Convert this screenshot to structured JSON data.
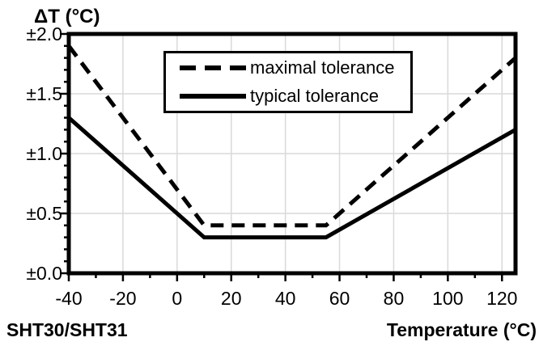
{
  "chart_data": {
    "type": "line",
    "title": "ΔT (°C)",
    "xlabel": "Temperature (°C)",
    "footer_left": "SHT30/SHT31",
    "xlim": [
      -40,
      125
    ],
    "ylim": [
      0,
      2
    ],
    "x_major_ticks": [
      {
        "v": -40,
        "label": "-40"
      },
      {
        "v": -20,
        "label": "-20"
      },
      {
        "v": 0,
        "label": "0"
      },
      {
        "v": 20,
        "label": "20"
      },
      {
        "v": 40,
        "label": "40"
      },
      {
        "v": 60,
        "label": "60"
      },
      {
        "v": 80,
        "label": "80"
      },
      {
        "v": 100,
        "label": "100"
      },
      {
        "v": 120,
        "label": "120"
      }
    ],
    "x_minor_step": 10,
    "y_major_ticks": [
      {
        "v": 0.0,
        "label": "±0.0"
      },
      {
        "v": 0.5,
        "label": "±0.5"
      },
      {
        "v": 1.0,
        "label": "±1.0"
      },
      {
        "v": 1.5,
        "label": "±1.5"
      },
      {
        "v": 2.0,
        "label": "±2.0"
      }
    ],
    "y_minor_step": 0.1,
    "grid": {
      "color": "#d9d9d9",
      "x_values": [
        -20,
        0,
        20,
        40,
        60,
        80,
        100,
        120
      ],
      "y_values": [
        0.5,
        1.0,
        1.5
      ]
    },
    "line_color": "#000000",
    "series": [
      {
        "name": "maximal tolerance",
        "style": "dashed",
        "points": [
          [
            -40,
            1.9
          ],
          [
            10,
            0.4
          ],
          [
            55,
            0.4
          ],
          [
            125,
            1.8
          ]
        ]
      },
      {
        "name": "typical tolerance",
        "style": "solid",
        "points": [
          [
            -40,
            1.3
          ],
          [
            10,
            0.3
          ],
          [
            55,
            0.3
          ],
          [
            125,
            1.2
          ]
        ]
      }
    ]
  }
}
